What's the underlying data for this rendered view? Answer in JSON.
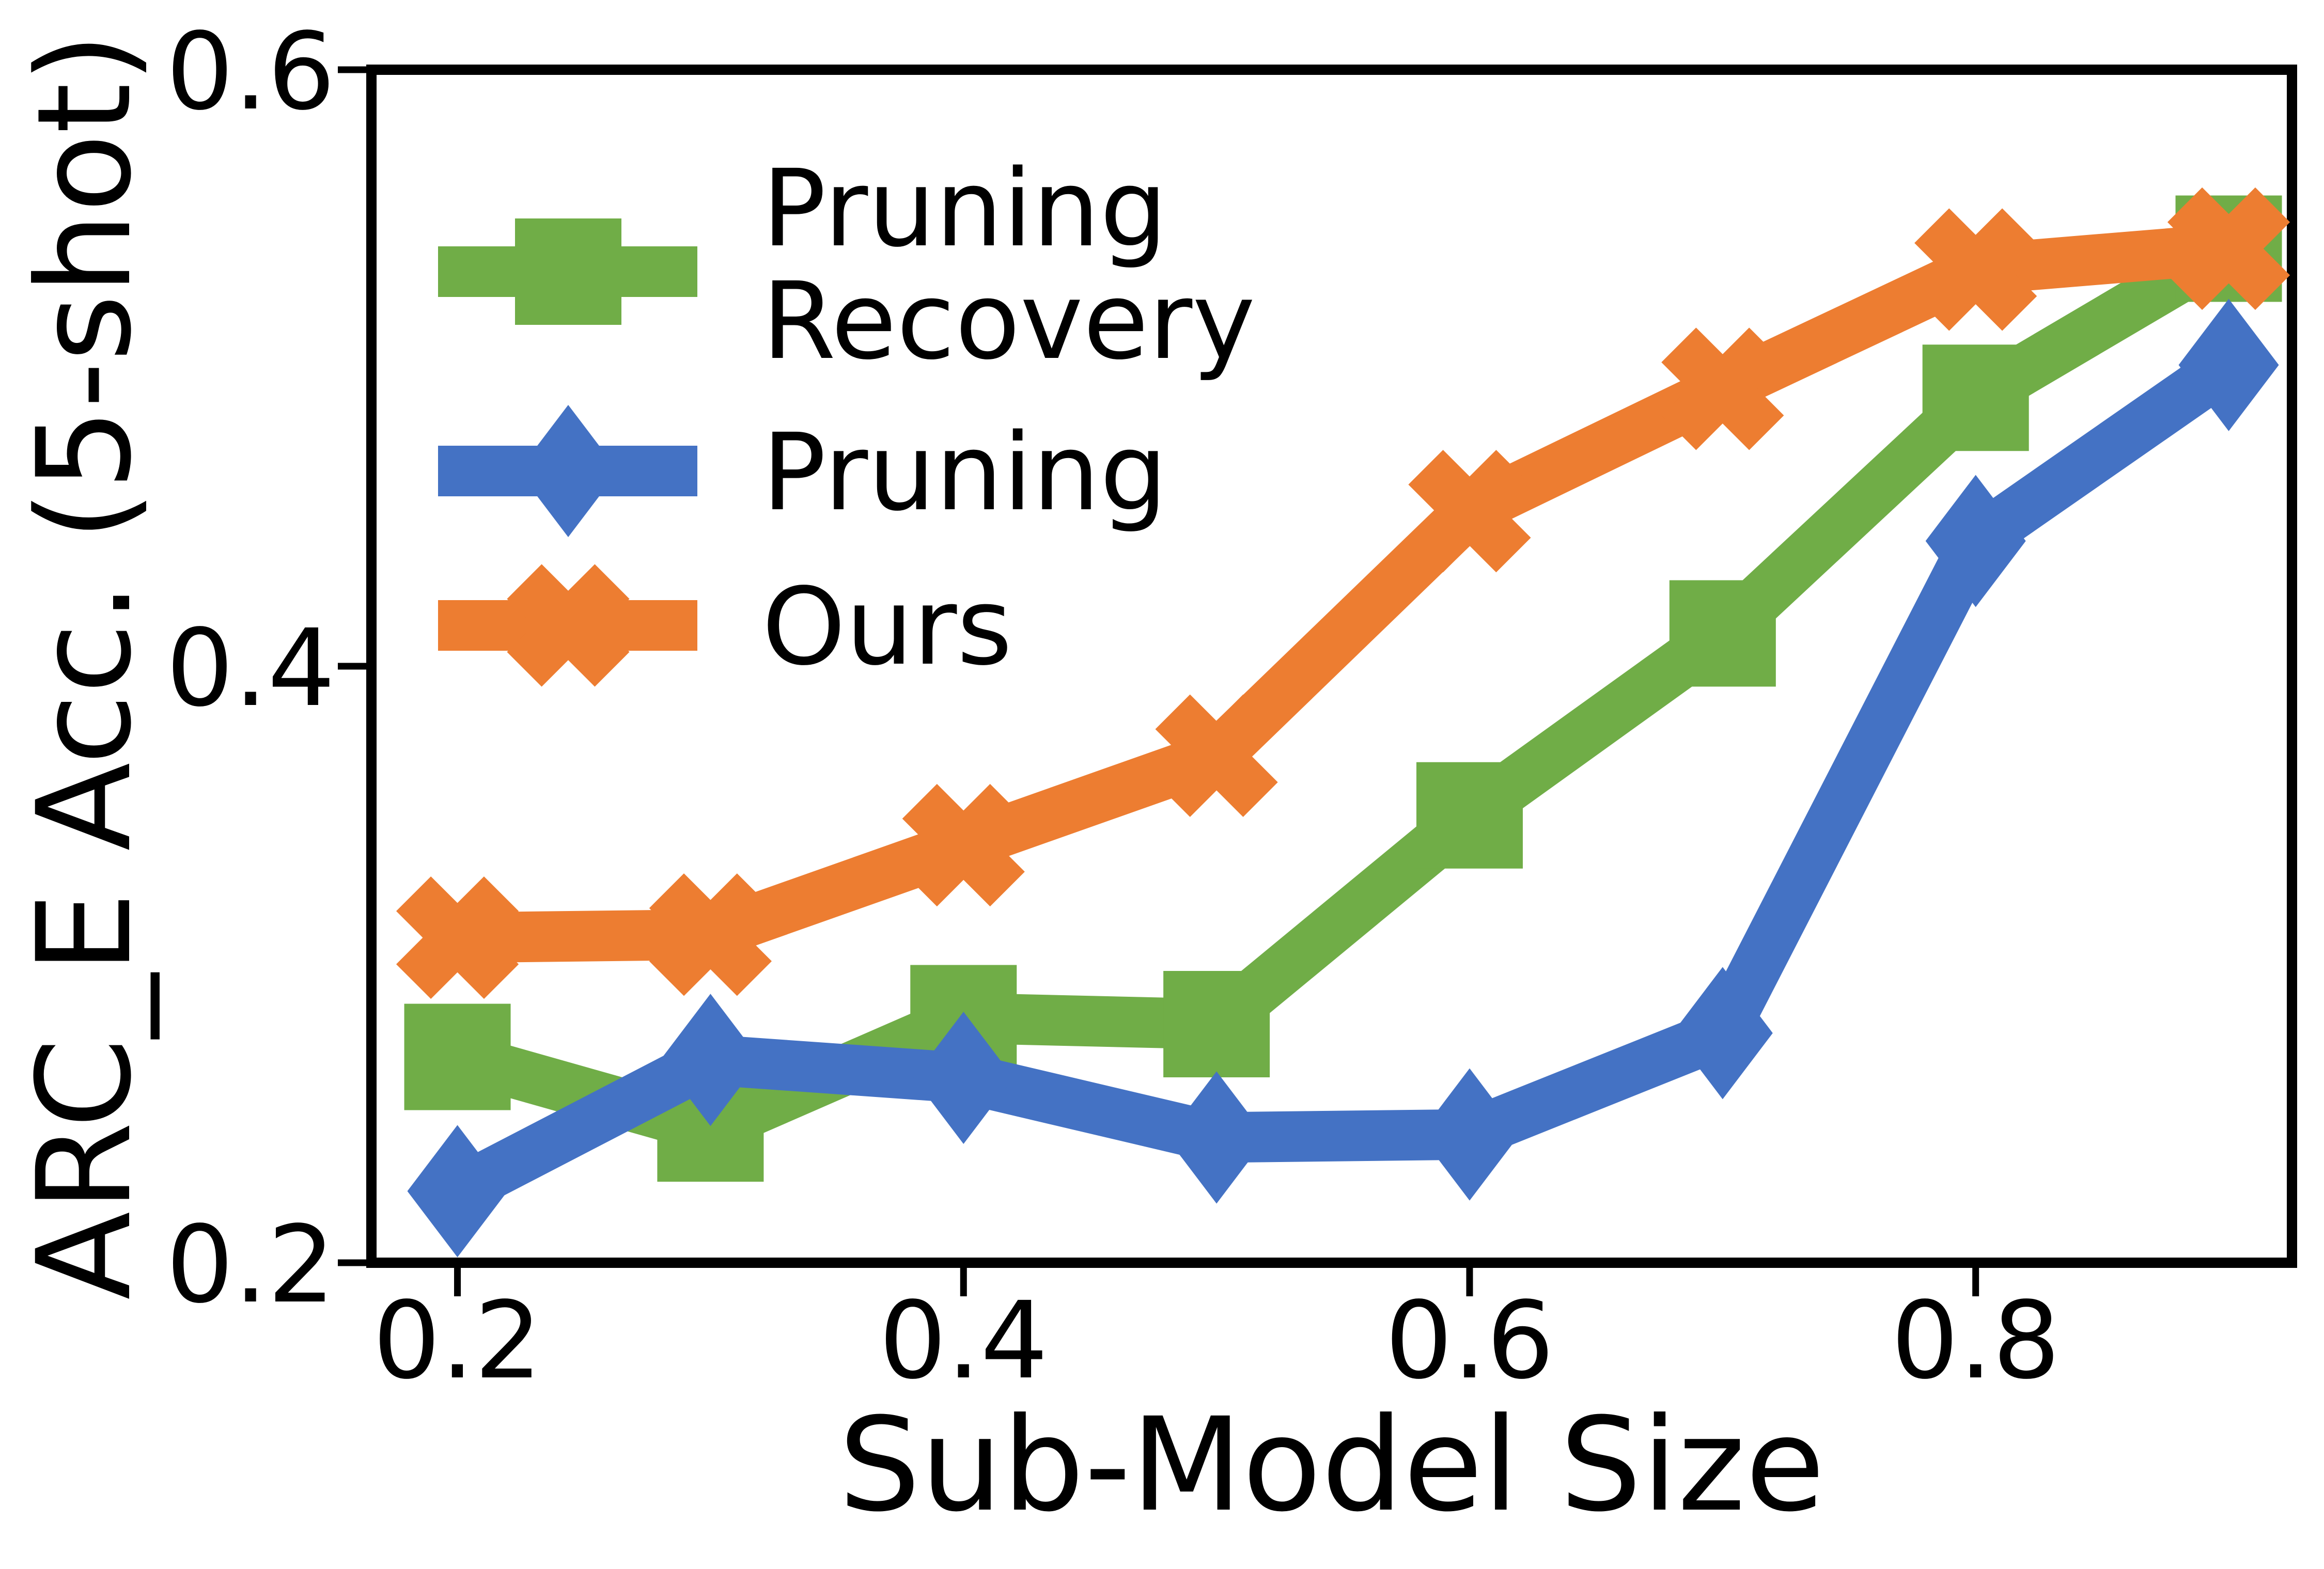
{
  "chart_data": {
    "type": "line",
    "title": "",
    "xlabel": "Sub-Model Size",
    "ylabel": "ARC_E Acc. (5-shot)",
    "x": [
      0.2,
      0.3,
      0.4,
      0.5,
      0.6,
      0.7,
      0.8,
      0.9
    ],
    "series": [
      {
        "name": "Pruning Recovery",
        "color": "#70AD47",
        "marker": "square",
        "values": [
          0.269,
          0.245,
          0.282,
          0.28,
          0.35,
          0.411,
          0.49,
          0.54
        ]
      },
      {
        "name": "Pruning",
        "color": "#4472C4",
        "marker": "diamond",
        "values": [
          0.224,
          0.268,
          0.262,
          0.242,
          0.243,
          0.277,
          0.442,
          0.501
        ]
      },
      {
        "name": "Ours",
        "color": "#ED7D31",
        "marker": "x",
        "values": [
          0.309,
          0.31,
          0.34,
          0.37,
          0.452,
          0.493,
          0.533,
          0.54
        ]
      }
    ],
    "xticks": {
      "values": [
        0.2,
        0.4,
        0.6,
        0.8
      ],
      "labels": [
        "0.2",
        "0.4",
        "0.6",
        "0.8"
      ]
    },
    "yticks": {
      "values": [
        0.2,
        0.4,
        0.6
      ],
      "labels": [
        "0.2",
        "0.4",
        "0.6"
      ]
    },
    "xlim": [
      0.166,
      0.925
    ],
    "ylim": [
      0.2,
      0.6
    ],
    "grid": false,
    "legend_position": "upper-left",
    "axis_color": "#000000"
  },
  "legend": {
    "items": [
      {
        "series": "Pruning Recovery",
        "lines": [
          "Pruning",
          "Recovery"
        ]
      },
      {
        "series": "Pruning",
        "lines": [
          "Pruning"
        ]
      },
      {
        "series": "Ours",
        "lines": [
          "Ours"
        ]
      }
    ]
  }
}
